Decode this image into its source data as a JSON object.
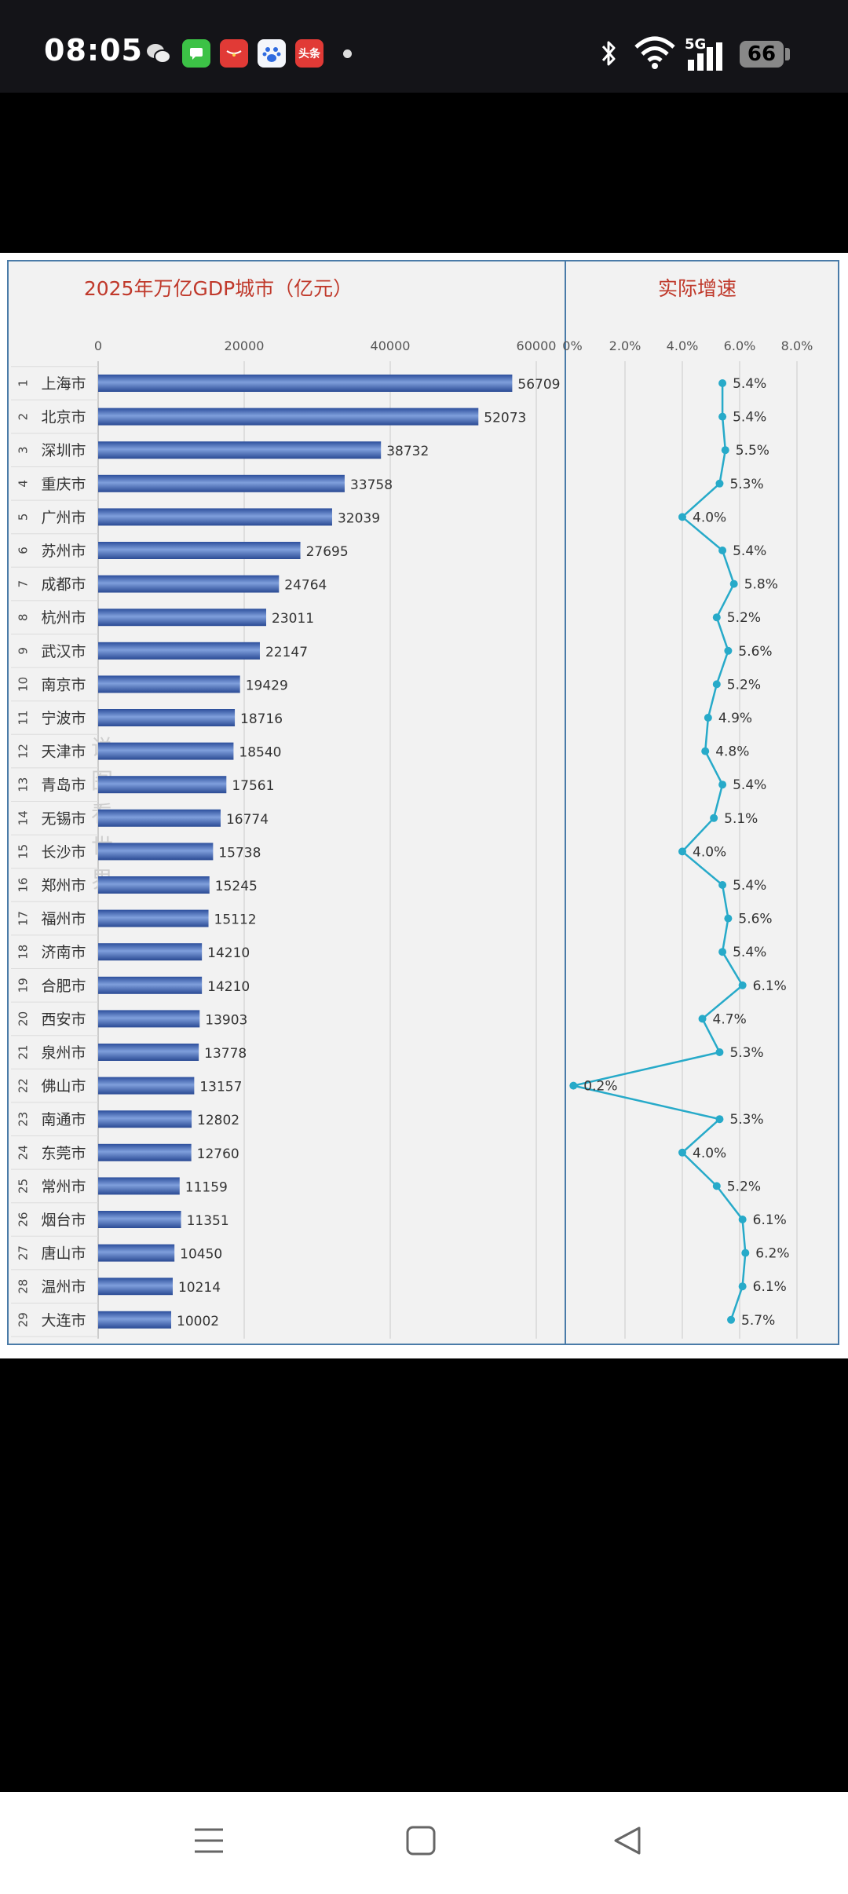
{
  "status_bar": {
    "time": "08:05",
    "notifications": [
      "wechat-icon",
      "messages-icon",
      "red-app-icon",
      "baidu-icon",
      "toutiao-icon"
    ],
    "toutiao_label": "头条",
    "network_label": "5G",
    "battery": "66"
  },
  "chart_data": [
    {
      "type": "bar",
      "title": "2025年万亿GDP城市（亿元）",
      "xlim": [
        0,
        60000
      ],
      "xticks": [
        "0",
        "20000",
        "40000",
        "60000"
      ],
      "ranks": [
        "1",
        "2",
        "3",
        "4",
        "5",
        "6",
        "7",
        "8",
        "9",
        "10",
        "11",
        "12",
        "13",
        "14",
        "15",
        "16",
        "17",
        "18",
        "19",
        "20",
        "21",
        "22",
        "23",
        "24",
        "25",
        "26",
        "27",
        "28",
        "29"
      ],
      "categories": [
        "上海市",
        "北京市",
        "深圳市",
        "重庆市",
        "广州市",
        "苏州市",
        "成都市",
        "杭州市",
        "武汉市",
        "南京市",
        "宁波市",
        "天津市",
        "青岛市",
        "无锡市",
        "长沙市",
        "郑州市",
        "福州市",
        "济南市",
        "合肥市",
        "西安市",
        "泉州市",
        "佛山市",
        "南通市",
        "东莞市",
        "常州市",
        "烟台市",
        "唐山市",
        "温州市",
        "大连市"
      ],
      "values": [
        56709,
        52073,
        38732,
        33758,
        32039,
        27695,
        24764,
        23011,
        22147,
        19429,
        18716,
        18540,
        17561,
        16774,
        15738,
        15245,
        15112,
        14210,
        14210,
        13903,
        13778,
        13157,
        12802,
        12760,
        11159,
        11351,
        10450,
        10214,
        10002
      ],
      "bar_color": "#3f66b8"
    },
    {
      "type": "line",
      "title": "实际增速",
      "xlim": [
        0,
        8
      ],
      "xticks": [
        "0%",
        "2.0%",
        "4.0%",
        "6.0%",
        "8.0%"
      ],
      "values": [
        5.4,
        5.4,
        5.5,
        5.3,
        4.0,
        5.4,
        5.8,
        5.2,
        5.6,
        5.2,
        4.9,
        4.8,
        5.4,
        5.1,
        4.0,
        5.4,
        5.6,
        5.4,
        6.1,
        4.7,
        5.3,
        0.2,
        5.3,
        4.0,
        5.2,
        6.1,
        6.2,
        6.1,
        5.7
      ],
      "labels": [
        "5.4%",
        "5.4%",
        "5.5%",
        "5.3%",
        "4.0%",
        "5.4%",
        "5.8%",
        "5.2%",
        "5.6%",
        "5.2%",
        "4.9%",
        "4.8%",
        "5.4%",
        "5.1%",
        "4.0%",
        "5.4%",
        "5.6%",
        "5.4%",
        "6.1%",
        "4.7%",
        "5.3%",
        "0.2%",
        "5.3%",
        "4.0%",
        "5.2%",
        "6.1%",
        "6.2%",
        "6.1%",
        "5.7%"
      ],
      "line_color": "#27aac9"
    }
  ],
  "watermark": [
    "说",
    "图",
    "看",
    "世",
    "界"
  ]
}
